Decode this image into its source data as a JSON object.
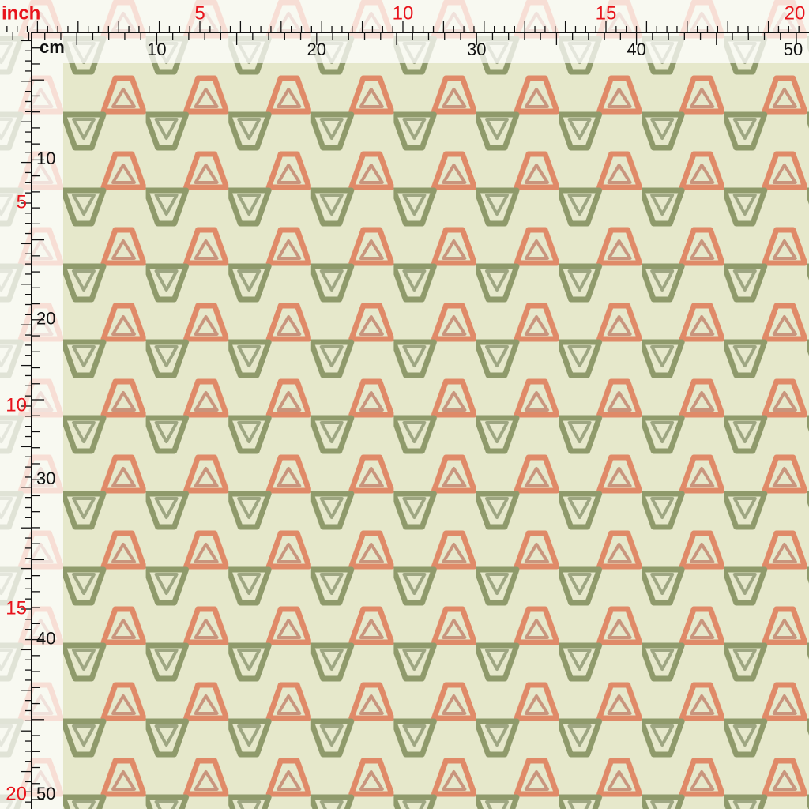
{
  "top_ruler": {
    "inch_unit": "inch",
    "inch_labels": [
      5,
      10,
      15,
      20
    ],
    "cm_unit": "cm",
    "cm_labels": [
      10,
      20,
      30,
      40,
      50
    ]
  },
  "left_ruler": {
    "inch_labels": [
      5,
      10,
      15,
      20
    ],
    "cm_labels": [
      10,
      20,
      30,
      40,
      50
    ]
  }
}
